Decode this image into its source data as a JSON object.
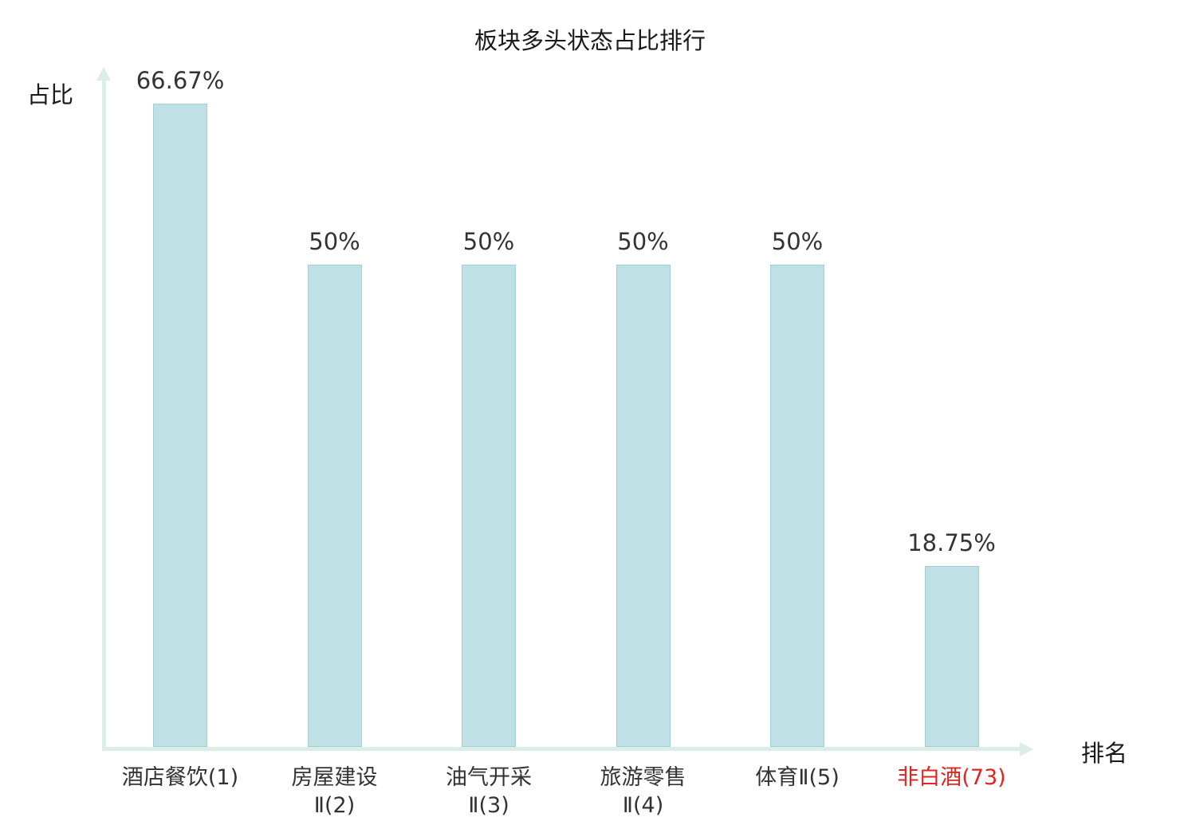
{
  "chart_data": {
    "type": "bar",
    "title": "板块多头状态占比排行",
    "ylabel": "占比",
    "xlabel": "排名",
    "categories": [
      "酒店餐饮(1)",
      "房屋建设Ⅱ(2)",
      "油气开采Ⅱ(3)",
      "旅游零售Ⅱ(4)",
      "体育Ⅱ(5)",
      "非白酒(73)"
    ],
    "values": [
      66.67,
      50,
      50,
      50,
      50,
      18.75
    ],
    "value_labels": [
      "66.67%",
      "50%",
      "50%",
      "50%",
      "50%",
      "18.75%"
    ],
    "category_lines": [
      [
        "酒店餐饮(1)"
      ],
      [
        "房屋建设",
        "Ⅱ(2)"
      ],
      [
        "油气开采",
        "Ⅱ(3)"
      ],
      [
        "旅游零售",
        "Ⅱ(4)"
      ],
      [
        "体育Ⅱ(5)"
      ],
      [
        "非白酒(73)"
      ]
    ],
    "highlight_index": 5,
    "ylim": [
      0,
      70
    ],
    "grid": false,
    "legend_position": "none",
    "colors": {
      "bar_fill": "#bfe0e4",
      "bar_border": "#a3ced5",
      "axis": "#daede7",
      "text": "#333333",
      "highlight": "#e02420"
    }
  }
}
